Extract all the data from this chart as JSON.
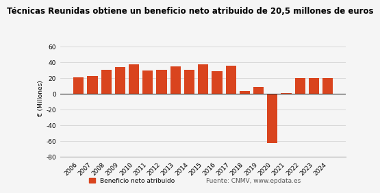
{
  "title": "Técnicas Reunidas obtiene un beneficio neto atribuido de 20,5 millones de euros",
  "ylabel": "€ (Millones)",
  "categories": [
    "2006",
    "2007",
    "2008",
    "2009",
    "2010",
    "2011",
    "2012",
    "2013",
    "2014",
    "2015",
    "2016",
    "2017",
    "2018",
    "2019",
    "2020",
    "2021",
    "2022",
    "2023",
    "2024"
  ],
  "values": [
    21,
    23,
    31,
    34,
    38,
    30,
    31,
    35,
    31,
    38,
    29,
    36,
    4,
    9,
    -62,
    1,
    20,
    20,
    20.5
  ],
  "bar_color": "#d9441e",
  "ylim": [
    -80,
    70
  ],
  "yticks": [
    -80,
    -60,
    -40,
    -20,
    0,
    20,
    40,
    60
  ],
  "legend_label": "Beneficio neto atribuido",
  "source_text": "Fuente: CNMV, www.epdata.es",
  "background_color": "#f5f5f5",
  "grid_color": "#cccccc",
  "title_fontsize": 8.5,
  "axis_fontsize": 6.5,
  "legend_fontsize": 6.5
}
